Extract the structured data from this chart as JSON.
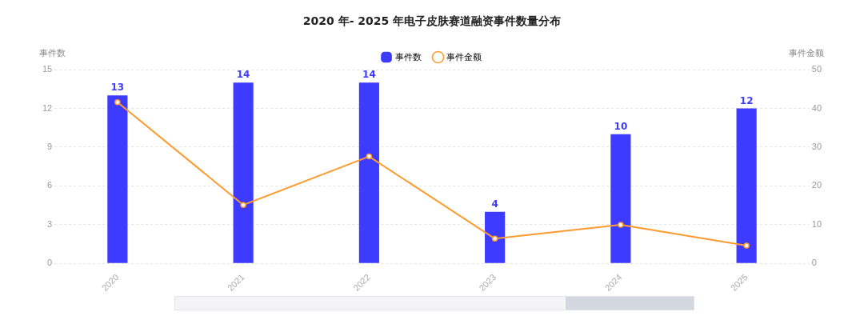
{
  "chart_data": {
    "type": "bar",
    "title": "2020 年- 2025 年电子皮肤赛道融资事件数量分布",
    "ylabel": "事件数",
    "y2label": "事件金额",
    "categories": [
      "2020",
      "2021",
      "2022",
      "2023",
      "2024",
      "2025"
    ],
    "series": [
      {
        "name": "事件数",
        "color": "#3d3bff",
        "values": [
          13,
          14,
          14,
          4,
          10,
          12
        ],
        "value_labels": [
          "13",
          "14",
          "14",
          "4",
          "10",
          "12"
        ]
      },
      {
        "name": "事件金额",
        "type": "line",
        "axis": "y2",
        "color": "#ff9a2e",
        "values": [
          41.6,
          15.1,
          27.6,
          6.4,
          10.0,
          4.6
        ]
      }
    ],
    "ylim": [
      0,
      15
    ],
    "yticks": [
      0,
      3,
      6,
      9,
      12,
      15
    ],
    "y2lim": [
      0,
      50
    ],
    "y2ticks": [
      0,
      10,
      20,
      30,
      40,
      50
    ],
    "grid": "y",
    "legend": "top",
    "marker": "circle",
    "line_style": "solid"
  }
}
